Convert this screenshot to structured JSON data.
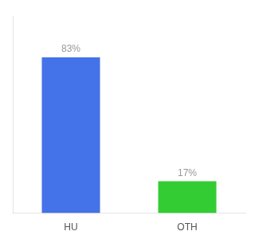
{
  "chart_data": {
    "type": "bar",
    "categories": [
      "HU",
      "OTH"
    ],
    "values": [
      83,
      17
    ],
    "value_labels": [
      "83%",
      "17%"
    ],
    "colors": [
      "#4472e8",
      "#33cc33"
    ],
    "ylim": [
      0,
      105
    ],
    "data_labels": true,
    "tick_labels": "x",
    "grid": false
  }
}
